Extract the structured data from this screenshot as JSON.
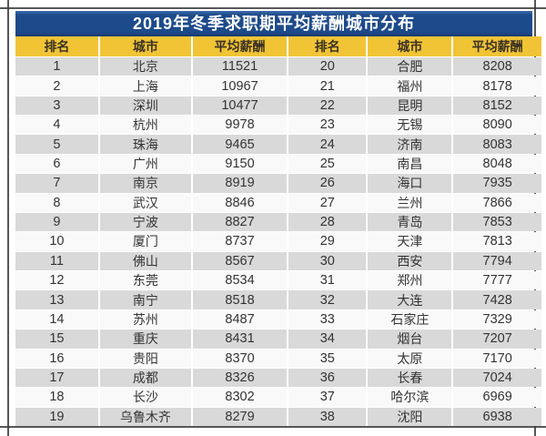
{
  "chart_data": {
    "type": "table",
    "title": "2019年冬季求职期平均薪酬城市分布",
    "columns": [
      "排名",
      "城市",
      "平均薪酬",
      "排名",
      "城市",
      "平均薪酬"
    ],
    "rows": [
      [
        "1",
        "北京",
        "11521",
        "20",
        "合肥",
        "8208"
      ],
      [
        "2",
        "上海",
        "10967",
        "21",
        "福州",
        "8178"
      ],
      [
        "3",
        "深圳",
        "10477",
        "22",
        "昆明",
        "8152"
      ],
      [
        "4",
        "杭州",
        "9978",
        "23",
        "无锡",
        "8090"
      ],
      [
        "5",
        "珠海",
        "9465",
        "24",
        "济南",
        "8083"
      ],
      [
        "6",
        "广州",
        "9150",
        "25",
        "南昌",
        "8048"
      ],
      [
        "7",
        "南京",
        "8919",
        "26",
        "海口",
        "7935"
      ],
      [
        "8",
        "武汉",
        "8846",
        "27",
        "兰州",
        "7866"
      ],
      [
        "9",
        "宁波",
        "8827",
        "28",
        "青岛",
        "7853"
      ],
      [
        "10",
        "厦门",
        "8737",
        "29",
        "天津",
        "7813"
      ],
      [
        "11",
        "佛山",
        "8567",
        "30",
        "西安",
        "7794"
      ],
      [
        "12",
        "东莞",
        "8534",
        "31",
        "郑州",
        "7777"
      ],
      [
        "13",
        "南宁",
        "8518",
        "32",
        "大连",
        "7428"
      ],
      [
        "14",
        "苏州",
        "8487",
        "33",
        "石家庄",
        "7329"
      ],
      [
        "15",
        "重庆",
        "8431",
        "34",
        "烟台",
        "7207"
      ],
      [
        "16",
        "贵阳",
        "8370",
        "35",
        "太原",
        "7170"
      ],
      [
        "17",
        "成都",
        "8326",
        "36",
        "长春",
        "7024"
      ],
      [
        "18",
        "长沙",
        "8302",
        "37",
        "哈尔滨",
        "6969"
      ],
      [
        "19",
        "乌鲁木齐",
        "8279",
        "38",
        "沈阳",
        "6938"
      ]
    ],
    "colors": {
      "title_bg": "#1d4a8a",
      "title_text": "#ffffff",
      "header_bg": "#f1c436",
      "header_text": "#3a3223",
      "row_odd_bg": "#d9d9d9",
      "row_even_bg": "#f9f9f9",
      "cell_text": "#333333",
      "frame_line": "#3a3a3a"
    }
  }
}
